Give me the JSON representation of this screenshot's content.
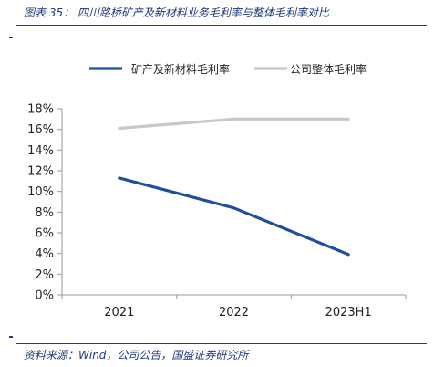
{
  "header": {
    "title": "图表 35： 四川路桥矿产及新材料业务毛利率与整体毛利率对比"
  },
  "footer": {
    "source": "资料来源：Wind，公司公告，国盛证券研究所"
  },
  "colors": {
    "accent": "#1f3a78",
    "series1": "#1f4e9c",
    "series2": "#c8c8c8",
    "axis": "#9a9a9a"
  },
  "chart_data": {
    "type": "line",
    "categories": [
      "2021",
      "2022",
      "2023H1"
    ],
    "series": [
      {
        "name": "矿产及新材料毛利率",
        "values": [
          0.113,
          0.084,
          0.039
        ]
      },
      {
        "name": "公司整体毛利率",
        "values": [
          0.161,
          0.17,
          0.17
        ]
      }
    ],
    "ylim": [
      0,
      0.18
    ],
    "yticks": [
      "0%",
      "2%",
      "4%",
      "6%",
      "8%",
      "10%",
      "12%",
      "14%",
      "16%",
      "18%"
    ],
    "grid": false,
    "legend_position": "top"
  }
}
